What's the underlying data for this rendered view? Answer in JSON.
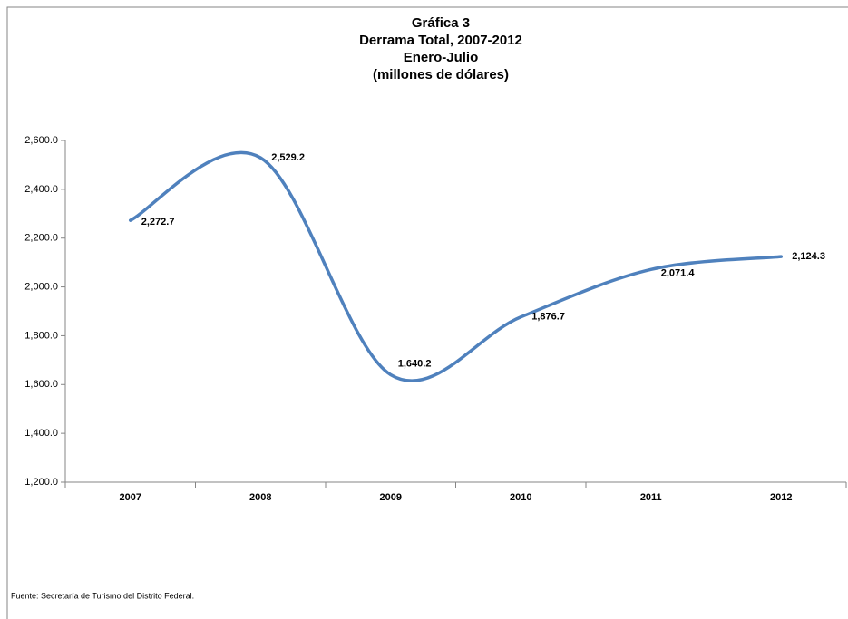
{
  "chart_data": {
    "type": "line",
    "title": "Gráfica 3",
    "subtitle": [
      "Derrama Total, 2007-2012",
      "Enero-Julio",
      "(millones de dólares)"
    ],
    "categories": [
      "2007",
      "2008",
      "2009",
      "2010",
      "2011",
      "2012"
    ],
    "series": [
      {
        "name": "Derrama Total",
        "color": "#4f81bd",
        "values": [
          2272.7,
          2529.2,
          1640.2,
          1876.7,
          2071.4,
          2124.3
        ],
        "value_labels": [
          "2,272.7",
          "2,529.2",
          "1,640.2",
          "1,876.7",
          "2,071.4",
          "2,124.3"
        ]
      }
    ],
    "ylim": [
      1200,
      2600
    ],
    "yticks": [
      {
        "value": 1200,
        "label": "1,200.0"
      },
      {
        "value": 1400,
        "label": "1,400.0"
      },
      {
        "value": 1600,
        "label": "1,600.0"
      },
      {
        "value": 1800,
        "label": "1,800.0"
      },
      {
        "value": 2000,
        "label": "2,000.0"
      },
      {
        "value": 2200,
        "label": "2,200.0"
      },
      {
        "value": 2400,
        "label": "2,400.0"
      },
      {
        "value": 2600,
        "label": "2,600.0"
      }
    ],
    "smooth": true,
    "source": "Fuente: Secretaría de Turismo del Distrito Federal."
  }
}
